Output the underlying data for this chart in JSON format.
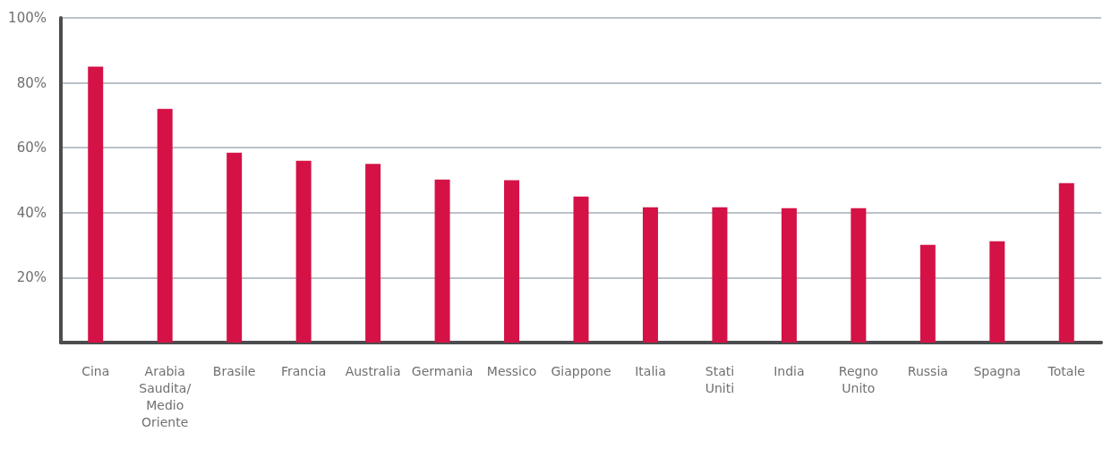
{
  "chart_data": {
    "type": "bar",
    "categories": [
      "Cina",
      "Arabia\nSaudita/\nMedio\nOriente",
      "Brasile",
      "Francia",
      "Australia",
      "Germania",
      "Messico",
      "Giappone",
      "Italia",
      "Stati\nUniti",
      "India",
      "Regno\nUnito",
      "Russia",
      "Spagna",
      "Totale"
    ],
    "values": [
      85,
      72,
      58.5,
      56,
      55,
      50.2,
      50,
      45,
      41.7,
      41.7,
      41.4,
      41.4,
      30.1,
      31.2,
      49.1
    ],
    "color": "#d41245",
    "ylim": [
      0,
      100
    ],
    "yticks": [
      {
        "value": 20,
        "label": "20%"
      },
      {
        "value": 40,
        "label": "40%"
      },
      {
        "value": 60,
        "label": "60%"
      },
      {
        "value": 80,
        "label": "80%"
      },
      {
        "value": 100,
        "label": "100%"
      }
    ],
    "grid": "y"
  }
}
